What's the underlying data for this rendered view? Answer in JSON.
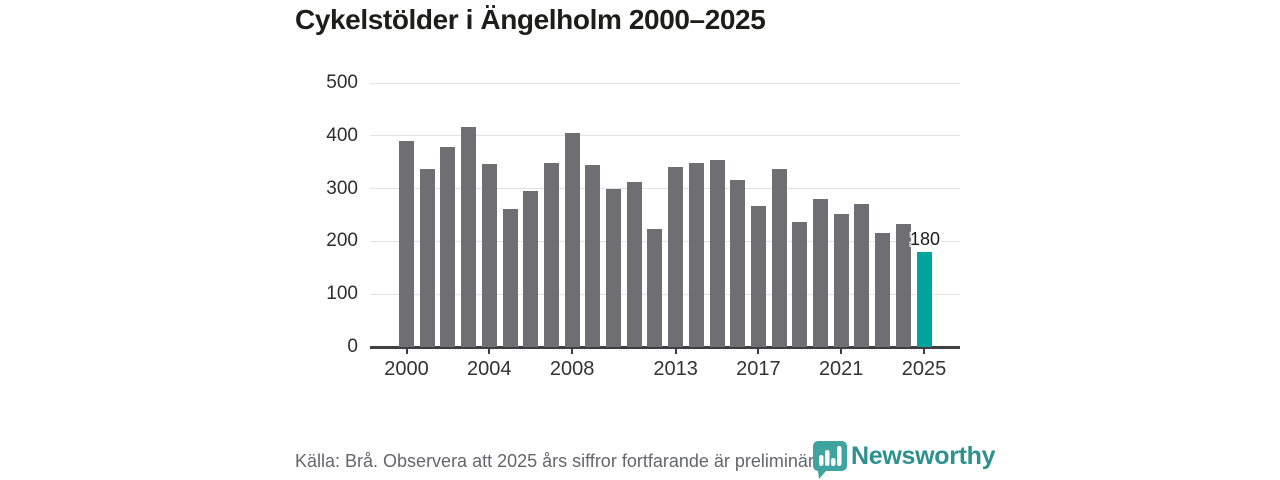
{
  "title": "Cykelstölder i Ängelholm 2000–2025",
  "chart_data": {
    "type": "bar",
    "title": "Cykelstölder i Ängelholm 2000–2025",
    "x": [
      2000,
      2001,
      2002,
      2003,
      2004,
      2005,
      2006,
      2007,
      2008,
      2009,
      2010,
      2011,
      2012,
      2013,
      2014,
      2015,
      2016,
      2017,
      2018,
      2019,
      2020,
      2021,
      2022,
      2023,
      2024,
      2025
    ],
    "values": [
      390,
      338,
      379,
      417,
      347,
      262,
      296,
      348,
      406,
      344,
      300,
      313,
      224,
      341,
      348,
      355,
      316,
      268,
      337,
      236,
      280,
      251,
      271,
      215,
      233,
      180
    ],
    "highlight": {
      "year": 2025,
      "value": 180,
      "label": "180"
    },
    "xlabel": "",
    "ylabel": "",
    "ylim": [
      0,
      500
    ],
    "yticks": [
      0,
      100,
      200,
      300,
      400,
      500
    ],
    "xticks": [
      2000,
      2004,
      2008,
      2013,
      2017,
      2021,
      2025
    ],
    "grid": true,
    "legend": "none",
    "bar_color": "#6e6e73",
    "highlight_color": "#00a49c"
  },
  "footer": {
    "source_text": "Källa: Brå. Observera att 2025 års siffror fortfarande är preliminära.",
    "brand": "Newsworthy"
  },
  "colors": {
    "background": "#ffffff",
    "title_text": "#1d1d1b",
    "bar": "#6e6e73",
    "highlight": "#00a49c",
    "gridline": "#e3e3e3",
    "axis_line": "#3f3f3f",
    "tick_text": "#333333",
    "source_text": "#65656d",
    "brand_teal": "#3fa3a0",
    "brand_word_teal": "#2d918f"
  },
  "icons": {
    "brand_icon": "newsworthy-bar-chart-bubble-icon"
  }
}
